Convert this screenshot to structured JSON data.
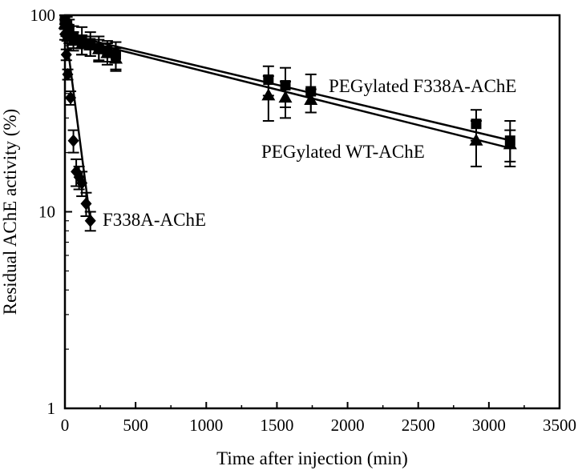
{
  "chart_data": {
    "type": "scatter",
    "title": "",
    "xlabel": "Time after injection (min)",
    "ylabel": "Residual AChE activity (%)",
    "xlim": [
      0,
      3500
    ],
    "ylim": [
      1,
      100
    ],
    "yscale": "log",
    "grid": false,
    "legend": "none",
    "x_ticks": [
      0,
      500,
      1000,
      1500,
      2000,
      2500,
      3000,
      3500
    ],
    "y_ticks": [
      1,
      10,
      100
    ],
    "series": [
      {
        "name": "PEGylated F338A-AChE",
        "marker": "square",
        "color": "#000000",
        "points": [
          {
            "x": 0,
            "y": 95,
            "err": 5
          },
          {
            "x": 15,
            "y": 90,
            "err": 8
          },
          {
            "x": 30,
            "y": 85,
            "err": 10
          },
          {
            "x": 60,
            "y": 78,
            "err": 10
          },
          {
            "x": 120,
            "y": 75,
            "err": 12
          },
          {
            "x": 180,
            "y": 72,
            "err": 10
          },
          {
            "x": 240,
            "y": 68,
            "err": 10
          },
          {
            "x": 300,
            "y": 66,
            "err": 8
          },
          {
            "x": 360,
            "y": 63,
            "err": 10
          },
          {
            "x": 1440,
            "y": 47,
            "err": 8
          },
          {
            "x": 1560,
            "y": 44,
            "err": 10
          },
          {
            "x": 1740,
            "y": 41,
            "err": 9
          },
          {
            "x": 2910,
            "y": 28,
            "err": 5
          },
          {
            "x": 3150,
            "y": 23,
            "err": 6
          }
        ],
        "fit": [
          [
            0,
            80
          ],
          [
            3160,
            23
          ]
        ]
      },
      {
        "name": "PEGylated WT-AChE",
        "marker": "triangle",
        "color": "#000000",
        "points": [
          {
            "x": 0,
            "y": 90,
            "err": 5
          },
          {
            "x": 15,
            "y": 82,
            "err": 8
          },
          {
            "x": 30,
            "y": 80,
            "err": 8
          },
          {
            "x": 60,
            "y": 74,
            "err": 8
          },
          {
            "x": 120,
            "y": 71,
            "err": 8
          },
          {
            "x": 180,
            "y": 70,
            "err": 8
          },
          {
            "x": 240,
            "y": 67,
            "err": 8
          },
          {
            "x": 300,
            "y": 64,
            "err": 8
          },
          {
            "x": 360,
            "y": 60,
            "err": 8
          },
          {
            "x": 1440,
            "y": 39,
            "err": 10
          },
          {
            "x": 1560,
            "y": 38,
            "err": 8
          },
          {
            "x": 1740,
            "y": 37,
            "err": 5
          },
          {
            "x": 2910,
            "y": 23,
            "err": 6
          },
          {
            "x": 3150,
            "y": 22,
            "err": 4
          }
        ],
        "fit": [
          [
            0,
            78
          ],
          [
            3160,
            21
          ]
        ]
      },
      {
        "name": "F338A-AChE",
        "marker": "diamond",
        "color": "#000000",
        "points": [
          {
            "x": 0,
            "y": 80,
            "err": 5
          },
          {
            "x": 10,
            "y": 63,
            "err": 4
          },
          {
            "x": 20,
            "y": 50,
            "err": 3
          },
          {
            "x": 40,
            "y": 38,
            "err": 3
          },
          {
            "x": 60,
            "y": 23,
            "err": 3
          },
          {
            "x": 80,
            "y": 16,
            "err": 2.5
          },
          {
            "x": 100,
            "y": 15,
            "err": 2
          },
          {
            "x": 120,
            "y": 14,
            "err": 2
          },
          {
            "x": 150,
            "y": 11,
            "err": 1.5
          },
          {
            "x": 180,
            "y": 9,
            "err": 1
          }
        ],
        "fit": [
          [
            0,
            88
          ],
          [
            180,
            9
          ]
        ]
      }
    ]
  }
}
